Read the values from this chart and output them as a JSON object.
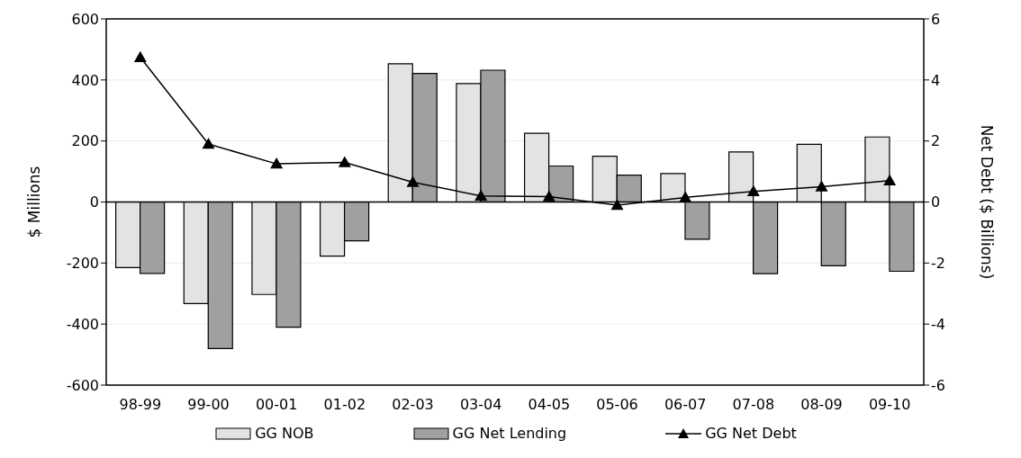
{
  "chart_data": {
    "type": "bar",
    "ylabel": "$ Millions",
    "y2label": "Net Debt ($ Billions)",
    "categories": [
      "98-99",
      "99-00",
      "00-01",
      "01-02",
      "02-03",
      "03-04",
      "04-05",
      "05-06",
      "06-07",
      "07-08",
      "08-09",
      "09-10"
    ],
    "series": [
      {
        "name": "GG NOB",
        "color": "#e3e3e3",
        "values": [
          -215,
          -333,
          -303,
          -177,
          453,
          388,
          225,
          150,
          93,
          164,
          189,
          213
        ]
      },
      {
        "name": "GG Net Lending",
        "color": "#a0a0a0",
        "values": [
          -234,
          -480,
          -410,
          -127,
          421,
          432,
          118,
          88,
          -122,
          -235,
          -209,
          -227
        ]
      },
      {
        "name": "GG Net Debt",
        "type": "line",
        "axis": "y2",
        "color": "#000000",
        "marker": "triangle",
        "values": [
          4.74,
          1.9,
          1.25,
          1.3,
          0.65,
          0.2,
          0.18,
          -0.1,
          0.15,
          0.35,
          0.5,
          0.7
        ]
      }
    ],
    "ylim": [
      -600,
      600
    ],
    "yticks": [
      -600,
      -400,
      -200,
      0,
      200,
      400,
      600
    ],
    "y2lim": [
      -6,
      6
    ],
    "y2ticks": [
      -6,
      -4,
      -2,
      0,
      2,
      4,
      6
    ],
    "grid": "y",
    "legend": "bottom"
  }
}
